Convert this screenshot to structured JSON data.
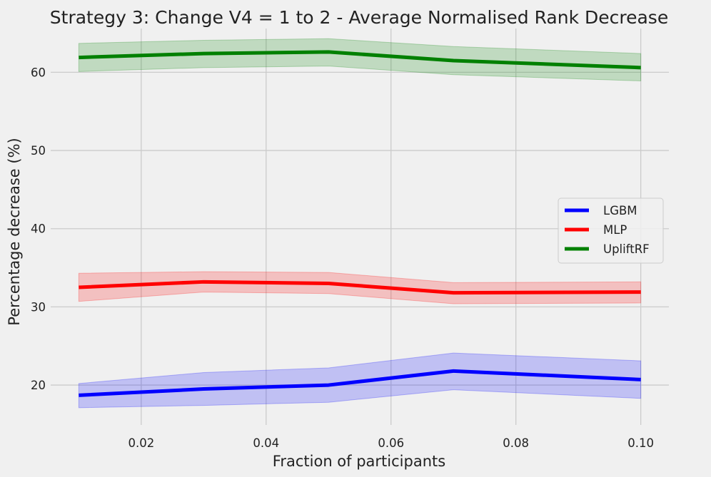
{
  "chart_data": {
    "type": "line",
    "title": "Strategy 3: Change V4 = 1 to 2 - Average Normalised Rank Decrease",
    "xlabel": "Fraction of participants",
    "ylabel": "Percentage decrease (%)",
    "x": [
      0.01,
      0.03,
      0.05,
      0.07,
      0.1
    ],
    "xlim": [
      0.0055,
      0.1045
    ],
    "ylim": [
      14.9,
      65.6
    ],
    "xticks": [
      0.02,
      0.04,
      0.06,
      0.08,
      0.1
    ],
    "xtick_labels": [
      "0.02",
      "0.04",
      "0.06",
      "0.08",
      "0.10"
    ],
    "yticks": [
      20,
      30,
      40,
      50,
      60
    ],
    "ytick_labels": [
      "20",
      "30",
      "40",
      "50",
      "60"
    ],
    "grid": true,
    "legend": "center-right",
    "series": [
      {
        "name": "LGBM",
        "color": "#0000ff",
        "values": [
          18.7,
          19.5,
          20.0,
          21.8,
          20.7
        ],
        "lower": [
          17.1,
          17.4,
          17.8,
          19.4,
          18.3
        ],
        "upper": [
          20.2,
          21.6,
          22.2,
          24.1,
          23.1
        ]
      },
      {
        "name": "MLP",
        "color": "#ff0000",
        "values": [
          32.5,
          33.2,
          33.0,
          31.8,
          31.9
        ],
        "lower": [
          30.7,
          31.9,
          31.7,
          30.4,
          30.5
        ],
        "upper": [
          34.3,
          34.5,
          34.4,
          33.1,
          33.2
        ]
      },
      {
        "name": "UpliftRF",
        "color": "#008000",
        "values": [
          61.9,
          62.4,
          62.6,
          61.5,
          60.6
        ],
        "lower": [
          60.1,
          60.6,
          60.8,
          59.7,
          58.9
        ],
        "upper": [
          63.7,
          64.1,
          64.3,
          63.3,
          62.4
        ]
      }
    ]
  }
}
